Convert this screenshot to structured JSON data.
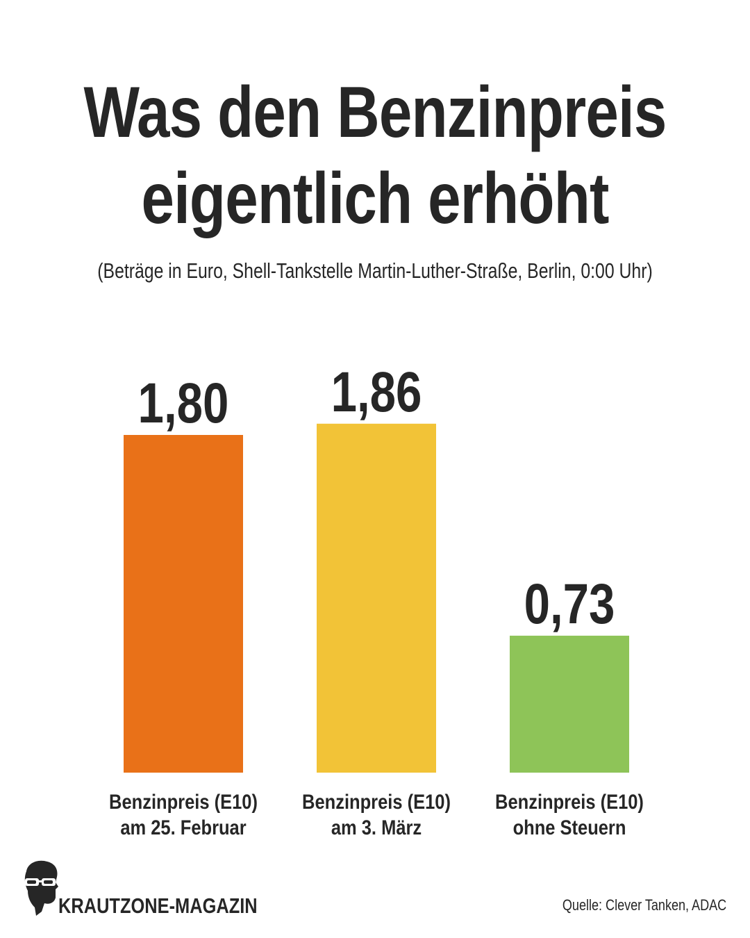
{
  "title_line1": "Was den Benzinpreis",
  "title_line2": "eigentlich erhöht",
  "subtitle": "(Beträge in Euro, Shell-Tankstelle Martin-Luther-Straße, Berlin, 0:00 Uhr)",
  "brand": "KRAUTZONE-MAGAZIN",
  "source": "Quelle: Clever Tanken, ADAC",
  "chart_data": {
    "type": "bar",
    "title": "Was den Benzinpreis eigentlich erhöht",
    "subtitle": "(Beträge in Euro, Shell-Tankstelle Martin-Luther-Straße, Berlin, 0:00 Uhr)",
    "categories": [
      [
        "Benzinpreis (E10)",
        "am 25. Februar"
      ],
      [
        "Benzinpreis (E10)",
        "am 3. März"
      ],
      [
        "Benzinpreis (E10)",
        "ohne Steuern"
      ]
    ],
    "values": [
      1.8,
      1.86,
      0.73
    ],
    "value_labels": [
      "1,80",
      "1,86",
      "0,73"
    ],
    "colors": [
      "#e97118",
      "#f2c337",
      "#8ec458"
    ],
    "ylim": [
      0,
      2.0
    ],
    "grid": false,
    "legend": "none"
  }
}
